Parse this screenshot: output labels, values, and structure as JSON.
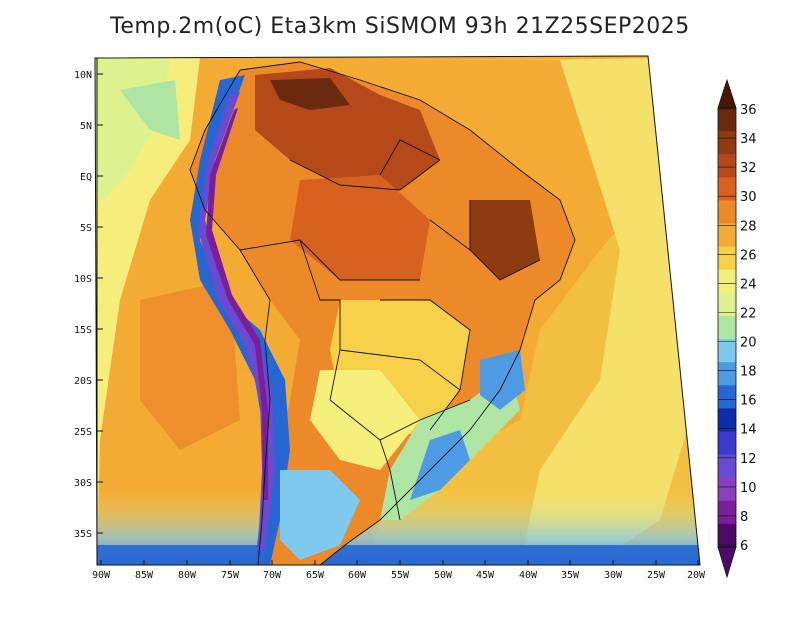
{
  "title": "Temp.2m(oC) Eta3km SiSMOM 93h 21Z25SEP2025",
  "lat_ticks": [
    "10N",
    "5N",
    "EQ",
    "5S",
    "10S",
    "15S",
    "20S",
    "25S",
    "30S",
    "35S"
  ],
  "lon_ticks": [
    "90W",
    "85W",
    "80W",
    "75W",
    "70W",
    "65W",
    "60W",
    "55W",
    "50W",
    "45W",
    "40W",
    "35W",
    "30W",
    "25W",
    "20W"
  ],
  "colorbar": {
    "labels": [
      "36",
      "34",
      "32",
      "30",
      "28",
      "26",
      "24",
      "22",
      "20",
      "18",
      "16",
      "14",
      "12",
      "10",
      "8",
      "6"
    ],
    "colors": [
      "#6b2a0f",
      "#8f3b12",
      "#b5491a",
      "#d7621f",
      "#ec8a2a",
      "#f3ab33",
      "#f7d04a",
      "#f5ee7a",
      "#ddf28e",
      "#aee5a3",
      "#7fc8ee",
      "#4e9be4",
      "#2667d4",
      "#0b2ea8",
      "#3a3acf",
      "#6a4ad0",
      "#8b3fbf",
      "#7a1e99",
      "#4b0b6b"
    ]
  }
}
